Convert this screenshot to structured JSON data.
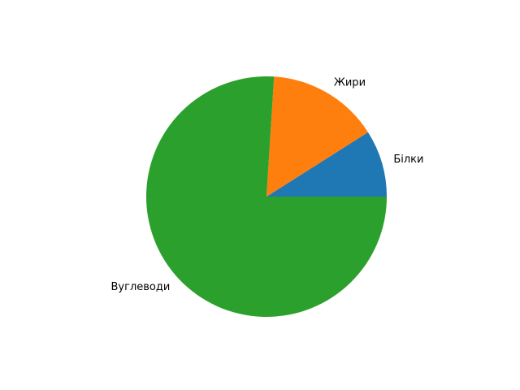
{
  "chart_data": {
    "type": "pie",
    "slices": [
      {
        "label": "Білки",
        "value": 9,
        "color": "#1f77b4"
      },
      {
        "label": "Жири",
        "value": 15,
        "color": "#ff7f0e"
      },
      {
        "label": "Вуглеводи",
        "value": 76,
        "color": "#2ca02c"
      }
    ],
    "start_angle_deg": 0,
    "direction": "counterclockwise"
  }
}
